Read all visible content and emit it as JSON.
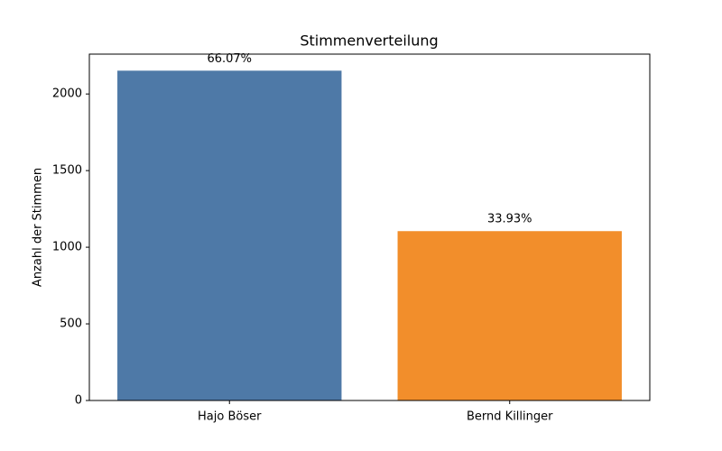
{
  "chart_data": {
    "type": "bar",
    "title": "Stimmenverteilung",
    "y_label": "Anzahl der Stimmen",
    "categories": [
      "Hajo Böser",
      "Bernd Killinger"
    ],
    "values": [
      2152,
      1105
    ],
    "colors": [
      "#4e79a7",
      "#f28e2b"
    ],
    "annotations": [
      "66.07%",
      "33.93%"
    ],
    "ylim": [
      0,
      2260
    ],
    "yticks": [
      0,
      500,
      1000,
      1500,
      2000
    ],
    "grid": false
  }
}
